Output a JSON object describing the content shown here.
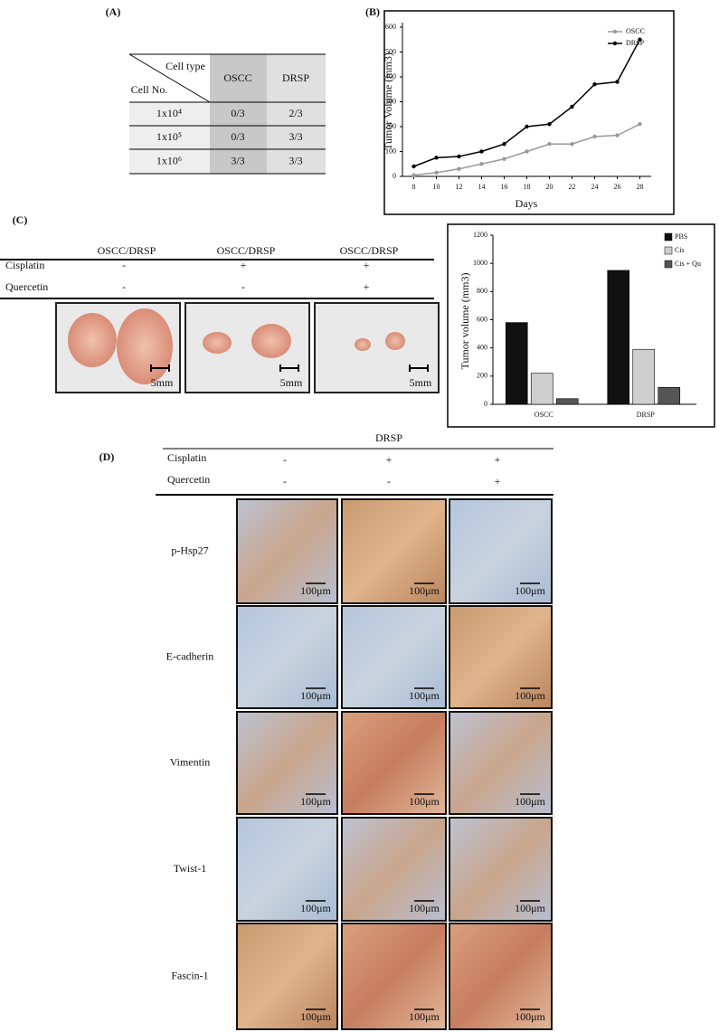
{
  "panel_labels": [
    "(A)",
    "(B)",
    "(C)",
    "(D)"
  ],
  "table": {
    "corner_top": "Cell type",
    "corner_bottom": "Cell No.",
    "columns": [
      "OSCC",
      "DRSP"
    ],
    "rows": [
      [
        "1x10⁴",
        "0/3",
        "2/3"
      ],
      [
        "1x10⁵",
        "0/3",
        "3/3"
      ],
      [
        "1x10⁶",
        "3/3",
        "3/3"
      ]
    ]
  },
  "chart_data": [
    {
      "type": "line",
      "x_label": "Days",
      "y_label": "Tumor Volume (mm3)",
      "x": [
        8,
        10,
        12,
        14,
        16,
        18,
        20,
        22,
        24,
        26,
        28
      ],
      "xlim": [
        7,
        29
      ],
      "xticks": [
        8,
        10,
        12,
        14,
        16,
        18,
        20,
        22,
        24,
        26,
        28
      ],
      "ylim": [
        0,
        600
      ],
      "yticks": [
        0,
        100,
        200,
        300,
        400,
        500,
        600
      ],
      "legend": "top-right",
      "series": [
        {
          "name": "OSCC",
          "color": "#9a9a9a",
          "values": [
            5,
            15,
            30,
            50,
            70,
            100,
            130,
            130,
            160,
            165,
            210
          ]
        },
        {
          "name": "DRSP",
          "color": "#000000",
          "values": [
            40,
            75,
            80,
            100,
            130,
            200,
            210,
            280,
            370,
            380,
            550
          ]
        }
      ]
    },
    {
      "type": "bar",
      "y_label": "Tumor volume (mm3)",
      "categories": [
        "OSCC",
        "DRSP"
      ],
      "ylim": [
        0,
        1200
      ],
      "yticks": [
        0,
        200,
        400,
        600,
        800,
        1000,
        1200
      ],
      "legend": "top-right",
      "series": [
        {
          "name": "PBS",
          "color": "#111111",
          "values": [
            580,
            950
          ]
        },
        {
          "name": "Cis",
          "color": "#cfcfcf",
          "values": [
            220,
            390
          ]
        },
        {
          "name": "Cis + Qu",
          "color": "#555555",
          "values": [
            40,
            120
          ]
        }
      ]
    }
  ],
  "treatment": {
    "group_label": "OSCC/DRSP",
    "cisplatin": "Cisplatin",
    "quercetin": "Quercetin",
    "cisplatin_signs": [
      "-",
      "+",
      "+"
    ],
    "quercetin_signs": [
      "-",
      "-",
      "+"
    ],
    "scale_label": "5mm"
  },
  "ihc": {
    "group": "DRSP",
    "cisplatin": "Cisplatin",
    "quercetin": "Quercetin",
    "cisplatin_signs": [
      "-",
      "+",
      "+"
    ],
    "quercetin_signs": [
      "-",
      "-",
      "+"
    ],
    "markers": [
      "p-Hsp27",
      "E-cadherin",
      "Vimentin",
      "Twist-1",
      "Fascin-1"
    ],
    "scale_label": "100μm"
  }
}
